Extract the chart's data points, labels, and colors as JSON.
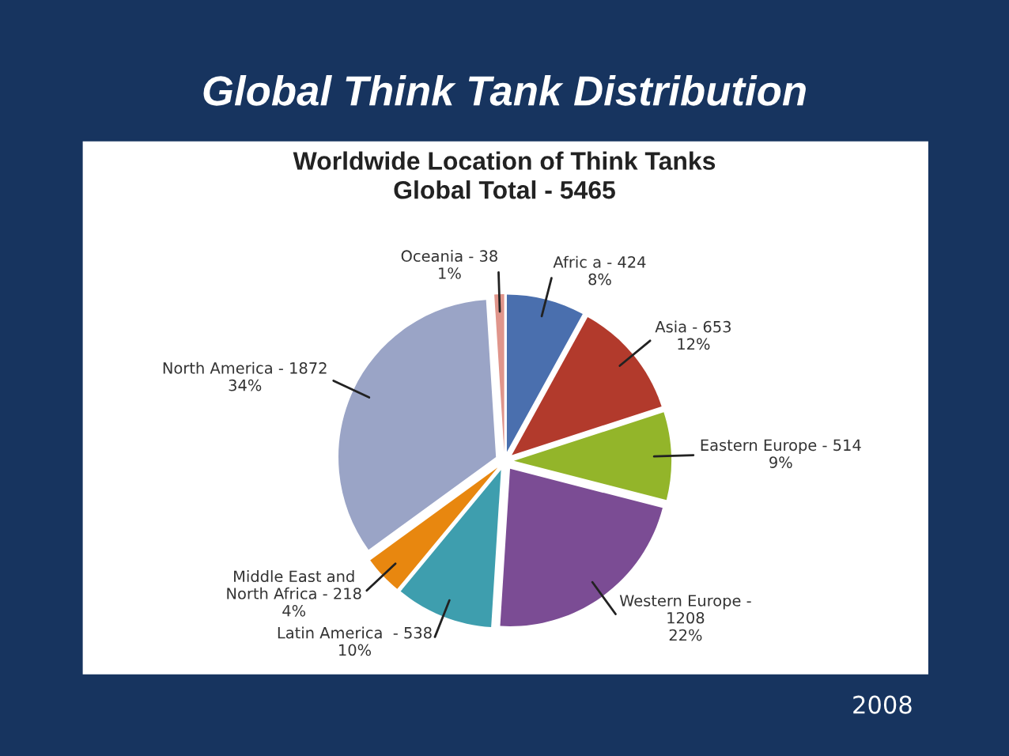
{
  "chart_data": {
    "type": "pie",
    "title": "Global Think Tank Distribution",
    "subtitle": "Worldwide Location of Think Tanks\nGlobal Total - 5465",
    "categories": [
      "Afric a - 424",
      "Asia - 653",
      "Eastern Europe - 514",
      "Western Europe -\n1208",
      "Latin America  - 538",
      "Middle East and\nNorth Africa - 218",
      "North America - 1872",
      "Oceania - 38"
    ],
    "values": [
      8,
      12,
      9,
      22,
      10,
      4,
      34,
      1
    ],
    "value_labels": [
      "8%",
      "12%",
      "9%",
      "22%",
      "10%",
      "4%",
      "34%",
      "1%"
    ],
    "colors": [
      "#4a6fae",
      "#b23a2c",
      "#93b52a",
      "#7b4c94",
      "#3e9eae",
      "#e8870f",
      "#9aa4c6",
      "#e0958b"
    ],
    "annotations": [
      "2008"
    ]
  }
}
